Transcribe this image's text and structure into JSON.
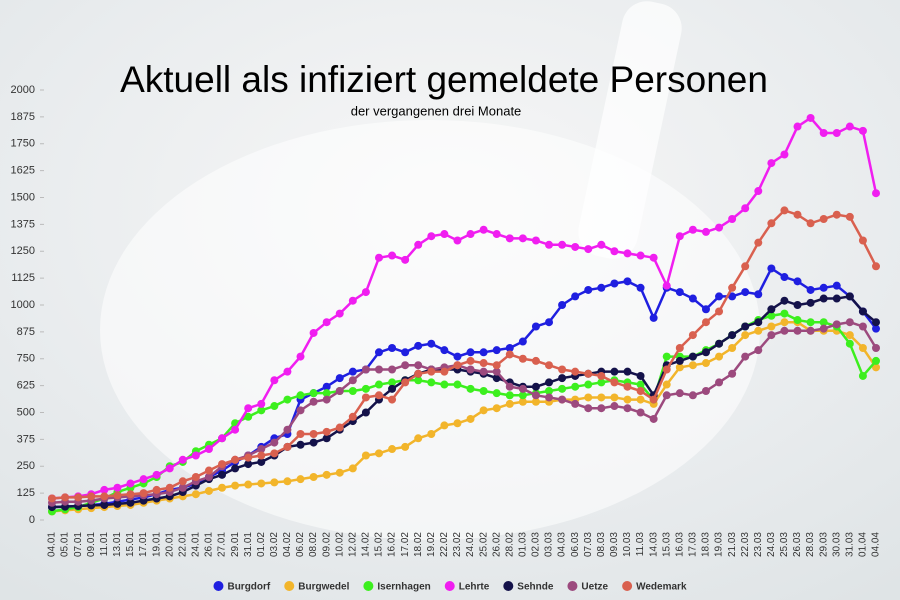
{
  "chart_data": {
    "type": "line",
    "title": "Aktuell als infiziert gemeldete Personen",
    "subtitle": "der vergangenen drei Monate",
    "categories": [
      "04.01",
      "05.01",
      "07.01",
      "09.01",
      "11.01",
      "13.01",
      "15.01",
      "17.01",
      "19.01",
      "20.01",
      "22.01",
      "24.01",
      "26.01",
      "27.01",
      "29.01",
      "31.01",
      "01.02",
      "03.02",
      "04.02",
      "06.02",
      "08.02",
      "09.02",
      "10.02",
      "12.02",
      "14.02",
      "15.02",
      "16.02",
      "17.02",
      "18.02",
      "19.02",
      "22.02",
      "23.02",
      "24.02",
      "25.02",
      "26.02",
      "28.02",
      "01.03",
      "02.03",
      "03.03",
      "04.03",
      "06.03",
      "07.03",
      "08.03",
      "09.03",
      "10.03",
      "11.03",
      "14.03",
      "15.03",
      "16.03",
      "17.03",
      "18.03",
      "19.03",
      "21.03",
      "22.03",
      "23.03",
      "24.03",
      "25.03",
      "26.03",
      "28.03",
      "29.03",
      "30.03",
      "31.03",
      "01.04",
      "04.04"
    ],
    "series": [
      {
        "name": "Burgdorf",
        "color": "#1f1fe0",
        "values": [
          60,
          62,
          65,
          70,
          75,
          85,
          95,
          105,
          120,
          140,
          150,
          170,
          200,
          230,
          270,
          300,
          340,
          380,
          400,
          560,
          590,
          620,
          660,
          690,
          700,
          780,
          800,
          780,
          810,
          820,
          790,
          760,
          780,
          780,
          790,
          800,
          830,
          900,
          920,
          1000,
          1040,
          1070,
          1080,
          1100,
          1110,
          1080,
          940,
          1080,
          1060,
          1030,
          980,
          1040,
          1040,
          1060,
          1050,
          1170,
          1130,
          1110,
          1070,
          1080,
          1090,
          1040,
          970,
          890
        ]
      },
      {
        "name": "Burgwedel",
        "color": "#f2b52b",
        "values": [
          40,
          45,
          50,
          55,
          60,
          65,
          70,
          80,
          90,
          100,
          110,
          120,
          135,
          150,
          160,
          165,
          170,
          175,
          180,
          190,
          200,
          210,
          220,
          240,
          300,
          310,
          330,
          340,
          380,
          400,
          440,
          450,
          470,
          510,
          520,
          540,
          550,
          550,
          550,
          560,
          560,
          570,
          570,
          570,
          560,
          560,
          540,
          630,
          710,
          720,
          730,
          760,
          800,
          860,
          880,
          900,
          920,
          920,
          880,
          880,
          880,
          860,
          800,
          710
        ]
      },
      {
        "name": "Isernhagen",
        "color": "#3cef1e",
        "values": [
          40,
          50,
          60,
          80,
          100,
          130,
          150,
          170,
          200,
          250,
          270,
          320,
          350,
          380,
          450,
          480,
          510,
          530,
          560,
          580,
          590,
          590,
          600,
          600,
          610,
          630,
          640,
          650,
          650,
          640,
          630,
          630,
          610,
          600,
          590,
          580,
          580,
          590,
          600,
          610,
          620,
          630,
          640,
          650,
          640,
          630,
          560,
          760,
          760,
          760,
          790,
          820,
          860,
          900,
          930,
          950,
          960,
          930,
          920,
          920,
          900,
          820,
          670,
          740
        ]
      },
      {
        "name": "Lehrte",
        "color": "#f01ef0",
        "values": [
          100,
          105,
          110,
          120,
          140,
          150,
          170,
          190,
          210,
          240,
          280,
          300,
          330,
          380,
          420,
          520,
          540,
          650,
          690,
          760,
          870,
          920,
          960,
          1020,
          1060,
          1220,
          1230,
          1210,
          1280,
          1320,
          1330,
          1300,
          1330,
          1350,
          1330,
          1310,
          1310,
          1300,
          1280,
          1280,
          1270,
          1260,
          1280,
          1250,
          1240,
          1230,
          1220,
          1090,
          1320,
          1350,
          1340,
          1360,
          1400,
          1450,
          1530,
          1660,
          1700,
          1830,
          1870,
          1800,
          1800,
          1830,
          1810,
          1520
        ]
      },
      {
        "name": "Sehnde",
        "color": "#14124a",
        "values": [
          60,
          62,
          65,
          68,
          70,
          75,
          80,
          90,
          100,
          110,
          130,
          160,
          190,
          210,
          240,
          260,
          270,
          300,
          340,
          350,
          360,
          380,
          420,
          460,
          500,
          560,
          610,
          650,
          680,
          700,
          700,
          700,
          690,
          680,
          660,
          640,
          620,
          620,
          640,
          660,
          670,
          680,
          690,
          690,
          690,
          670,
          580,
          720,
          740,
          760,
          780,
          820,
          860,
          900,
          920,
          980,
          1020,
          1000,
          1010,
          1030,
          1030,
          1040,
          970,
          920
        ]
      },
      {
        "name": "Uetze",
        "color": "#9c4a7e",
        "values": [
          80,
          85,
          85,
          90,
          100,
          105,
          110,
          115,
          120,
          130,
          150,
          180,
          200,
          250,
          280,
          300,
          330,
          360,
          420,
          510,
          550,
          560,
          600,
          650,
          700,
          700,
          700,
          720,
          720,
          700,
          710,
          720,
          700,
          690,
          690,
          620,
          610,
          580,
          570,
          560,
          540,
          520,
          520,
          530,
          520,
          500,
          470,
          580,
          590,
          580,
          600,
          640,
          680,
          760,
          790,
          860,
          880,
          880,
          880,
          890,
          910,
          920,
          900,
          800
        ]
      },
      {
        "name": "Wedemark",
        "color": "#d9604f",
        "values": [
          100,
          105,
          105,
          110,
          110,
          115,
          120,
          125,
          140,
          150,
          180,
          200,
          230,
          260,
          280,
          290,
          300,
          310,
          340,
          400,
          400,
          410,
          430,
          480,
          570,
          580,
          560,
          640,
          680,
          690,
          690,
          720,
          740,
          730,
          720,
          770,
          750,
          740,
          720,
          700,
          690,
          680,
          670,
          640,
          620,
          600,
          560,
          700,
          800,
          860,
          920,
          970,
          1080,
          1180,
          1290,
          1380,
          1440,
          1420,
          1380,
          1400,
          1420,
          1410,
          1300,
          1180
        ]
      }
    ],
    "ylim": [
      0,
      2000
    ],
    "yticks": [
      0,
      125,
      250,
      375,
      500,
      625,
      750,
      875,
      1000,
      1125,
      1250,
      1375,
      1500,
      1625,
      1750,
      1875,
      2000
    ],
    "grid": false,
    "legend": "bottom"
  }
}
